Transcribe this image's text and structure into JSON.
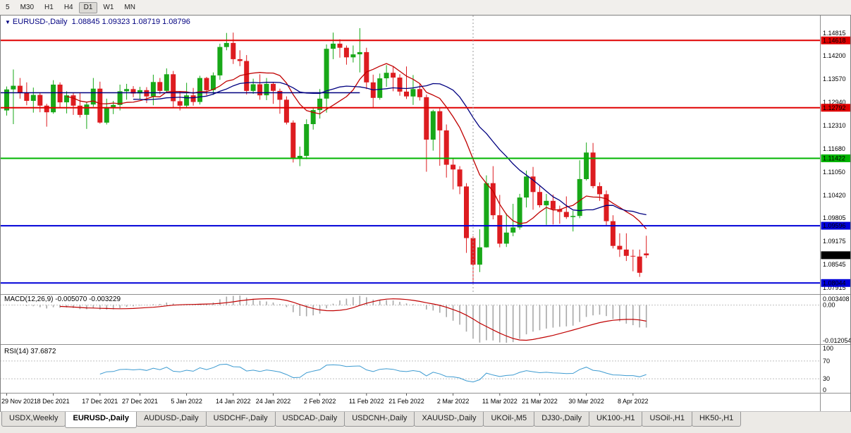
{
  "toolbar": {
    "timeframes": [
      "5",
      "M30",
      "H1",
      "H4",
      "D1",
      "W1",
      "MN"
    ],
    "active_timeframe": "D1"
  },
  "chart": {
    "collapse_icon": "▼",
    "title": "EURUSD-,Daily",
    "ohlc_display": "1.08845 1.09323 1.08719 1.08796"
  },
  "indicators": {
    "macd": {
      "label": "MACD(12,26,9) -0.005070 -0.003229",
      "axis_labels": [
        "0.003408",
        "0.00",
        "-0.012054"
      ],
      "histogram_color": "#a8a8a8",
      "signal_color": "#c00000"
    },
    "rsi": {
      "label": "RSI(14) 37.6872",
      "axis_labels": [
        "100",
        "70",
        "30",
        "0"
      ],
      "levels": [
        70,
        30
      ],
      "line_color": "#3d9bd1"
    }
  },
  "price_axis": {
    "regular": [
      1.14815,
      1.142,
      1.1357,
      1.1294,
      1.1231,
      1.1168,
      1.1105,
      1.1042,
      1.09805,
      1.09175,
      1.08545,
      1.07915
    ],
    "highlighted": [
      {
        "value": 1.14618,
        "color": "#e00000"
      },
      {
        "value": 1.12792,
        "color": "#e00000"
      },
      {
        "value": 1.11422,
        "color": "#00b400"
      },
      {
        "value": 1.09596,
        "color": "#0000d8"
      },
      {
        "value": 1.08044,
        "color": "#0000d8"
      }
    ],
    "current": {
      "value": 1.08796,
      "bg": "#000000"
    }
  },
  "chart_data": {
    "type": "candlestick",
    "symbol": "EURUSD-",
    "period": "Daily",
    "candle_colors": {
      "up": "#18a818",
      "down": "#dd1c20"
    },
    "y_axis_range": [
      1.0778,
      1.1514
    ],
    "horizontal_lines": [
      {
        "value": 1.14618,
        "color": "#e00000"
      },
      {
        "value": 1.12792,
        "color": "#e00000"
      },
      {
        "value": 1.11422,
        "color": "#00b400"
      },
      {
        "value": 1.09596,
        "color": "#0000d8"
      },
      {
        "value": 1.08044,
        "color": "#0000d8"
      }
    ],
    "trendline": {
      "value": 1.132,
      "from_index": 0,
      "to_index": 53,
      "color": "#000080"
    },
    "vertical_line": {
      "index": 70,
      "color": "#999999"
    },
    "overlays": [
      {
        "name": "ma-fast",
        "method": "sma",
        "period": 10,
        "color": "#c00000"
      },
      {
        "name": "ma-slow",
        "method": "sma",
        "period": 20,
        "color": "#000080"
      }
    ],
    "macd_params": [
      12,
      26,
      9
    ],
    "rsi_params": [
      14
    ],
    "x_labels": [
      "29 Nov 2021",
      "8 Dec 2021",
      "17 Dec 2021",
      "27 Dec 2021",
      "5 Jan 2022",
      "14 Jan 2022",
      "24 Jan 2022",
      "2 Feb 2022",
      "11 Feb 2022",
      "21 Feb 2022",
      "2 Mar 2022",
      "11 Mar 2022",
      "21 Mar 2022",
      "30 Mar 2022",
      "8 Apr 2022"
    ],
    "x_label_indices": [
      0,
      7,
      14,
      20,
      27,
      34,
      40,
      47,
      54,
      60,
      67,
      74,
      80,
      87,
      94
    ],
    "ohlc": [
      [
        1.1272,
        1.1337,
        1.1258,
        1.1329
      ],
      [
        1.1329,
        1.1383,
        1.1235,
        1.1339
      ],
      [
        1.1339,
        1.136,
        1.1304,
        1.1319
      ],
      [
        1.1319,
        1.1348,
        1.1286,
        1.1298
      ],
      [
        1.1298,
        1.1334,
        1.1266,
        1.1314
      ],
      [
        1.1314,
        1.132,
        1.1267,
        1.1285
      ],
      [
        1.1285,
        1.129,
        1.1228,
        1.1267
      ],
      [
        1.1267,
        1.1354,
        1.1263,
        1.1342
      ],
      [
        1.1342,
        1.1348,
        1.1279,
        1.1294
      ],
      [
        1.1294,
        1.1324,
        1.1264,
        1.1313
      ],
      [
        1.1313,
        1.1319,
        1.126,
        1.1285
      ],
      [
        1.1285,
        1.132,
        1.1253,
        1.126
      ],
      [
        1.126,
        1.1296,
        1.1222,
        1.1288
      ],
      [
        1.1288,
        1.136,
        1.1282,
        1.1331
      ],
      [
        1.1331,
        1.135,
        1.1236,
        1.1239
      ],
      [
        1.1239,
        1.1304,
        1.1234,
        1.1281
      ],
      [
        1.1281,
        1.1298,
        1.1262,
        1.1287
      ],
      [
        1.1287,
        1.1342,
        1.1272,
        1.1324
      ],
      [
        1.1324,
        1.1344,
        1.1301,
        1.133
      ],
      [
        1.133,
        1.1338,
        1.1308,
        1.1318
      ],
      [
        1.1318,
        1.1336,
        1.1302,
        1.1327
      ],
      [
        1.1327,
        1.1335,
        1.1292,
        1.131
      ],
      [
        1.131,
        1.1369,
        1.1286,
        1.1349
      ],
      [
        1.1349,
        1.136,
        1.1316,
        1.1325
      ],
      [
        1.1325,
        1.1386,
        1.132,
        1.137
      ],
      [
        1.137,
        1.1379,
        1.1279,
        1.1297
      ],
      [
        1.1297,
        1.1323,
        1.1272,
        1.1285
      ],
      [
        1.1285,
        1.1347,
        1.1278,
        1.1313
      ],
      [
        1.1313,
        1.1333,
        1.1285,
        1.1295
      ],
      [
        1.1295,
        1.1366,
        1.1288,
        1.136
      ],
      [
        1.136,
        1.1363,
        1.1313,
        1.1327
      ],
      [
        1.1327,
        1.1375,
        1.1314,
        1.1367
      ],
      [
        1.1367,
        1.1453,
        1.1355,
        1.1444
      ],
      [
        1.1444,
        1.1482,
        1.1435,
        1.1455
      ],
      [
        1.1455,
        1.1483,
        1.1398,
        1.1411
      ],
      [
        1.1411,
        1.1435,
        1.1392,
        1.1406
      ],
      [
        1.1406,
        1.1422,
        1.1315,
        1.1325
      ],
      [
        1.1325,
        1.1358,
        1.1317,
        1.1343
      ],
      [
        1.1343,
        1.137,
        1.1301,
        1.1313
      ],
      [
        1.1313,
        1.136,
        1.13,
        1.1344
      ],
      [
        1.1344,
        1.1349,
        1.129,
        1.1325
      ],
      [
        1.1325,
        1.1331,
        1.1263,
        1.1301
      ],
      [
        1.1301,
        1.131,
        1.1234,
        1.1239
      ],
      [
        1.1239,
        1.1245,
        1.1131,
        1.1144
      ],
      [
        1.1144,
        1.1174,
        1.1121,
        1.1149
      ],
      [
        1.1149,
        1.1248,
        1.114,
        1.1235
      ],
      [
        1.1235,
        1.128,
        1.122,
        1.1273
      ],
      [
        1.1273,
        1.133,
        1.125,
        1.1304
      ],
      [
        1.1304,
        1.1451,
        1.1266,
        1.1439
      ],
      [
        1.1439,
        1.1483,
        1.1411,
        1.1453
      ],
      [
        1.1453,
        1.1465,
        1.1415,
        1.1442
      ],
      [
        1.1442,
        1.1448,
        1.1396,
        1.1416
      ],
      [
        1.1416,
        1.1448,
        1.1402,
        1.1424
      ],
      [
        1.1424,
        1.1495,
        1.1375,
        1.143
      ],
      [
        1.143,
        1.1442,
        1.133,
        1.1348
      ],
      [
        1.1348,
        1.1369,
        1.1278,
        1.1306
      ],
      [
        1.1306,
        1.1372,
        1.1301,
        1.1359
      ],
      [
        1.1359,
        1.1395,
        1.1336,
        1.1374
      ],
      [
        1.1374,
        1.1392,
        1.1324,
        1.1361
      ],
      [
        1.1361,
        1.137,
        1.1312,
        1.1323
      ],
      [
        1.1323,
        1.1391,
        1.1303,
        1.131
      ],
      [
        1.131,
        1.1368,
        1.1287,
        1.133
      ],
      [
        1.133,
        1.1343,
        1.1299,
        1.1308
      ],
      [
        1.1308,
        1.1315,
        1.1106,
        1.1193
      ],
      [
        1.1193,
        1.1274,
        1.1163,
        1.127
      ],
      [
        1.127,
        1.1279,
        1.1122,
        1.1218
      ],
      [
        1.1218,
        1.1234,
        1.109,
        1.1125
      ],
      [
        1.1125,
        1.1144,
        1.1058,
        1.1112
      ],
      [
        1.1112,
        1.1121,
        1.1045,
        1.1066
      ],
      [
        1.1066,
        1.1075,
        1.0886,
        1.0926
      ],
      [
        1.0926,
        1.0931,
        1.0804,
        1.0854
      ],
      [
        1.0854,
        1.095,
        1.0834,
        1.0901
      ],
      [
        1.0901,
        1.1096,
        1.09,
        1.1075
      ],
      [
        1.1075,
        1.1121,
        1.0977,
        1.0988
      ],
      [
        1.0988,
        1.1043,
        1.0901,
        1.0911
      ],
      [
        1.0911,
        1.0993,
        1.0902,
        1.0941
      ],
      [
        1.0941,
        1.1019,
        1.0931,
        1.0955
      ],
      [
        1.0955,
        1.1046,
        1.0949,
        1.1036
      ],
      [
        1.1036,
        1.1109,
        1.1009,
        1.1093
      ],
      [
        1.1093,
        1.1119,
        1.1003,
        1.1051
      ],
      [
        1.1051,
        1.1069,
        1.1009,
        1.1015
      ],
      [
        1.1015,
        1.1046,
        1.0962,
        1.1027
      ],
      [
        1.1027,
        1.1044,
        1.0963,
        1.1004
      ],
      [
        1.1004,
        1.1014,
        1.0965,
        1.0997
      ],
      [
        1.0997,
        1.1039,
        1.0978,
        1.0983
      ],
      [
        1.0983,
        1.1,
        1.0944,
        1.0986
      ],
      [
        1.0986,
        1.1137,
        1.098,
        1.1086
      ],
      [
        1.1086,
        1.1185,
        1.1082,
        1.1158
      ],
      [
        1.1158,
        1.1184,
        1.1061,
        1.1067
      ],
      [
        1.1067,
        1.1077,
        1.1027,
        1.1045
      ],
      [
        1.1045,
        1.1055,
        1.0961,
        1.0972
      ],
      [
        1.0972,
        1.0988,
        1.0898,
        1.0905
      ],
      [
        1.0905,
        1.0939,
        1.0875,
        1.0895
      ],
      [
        1.0895,
        1.0939,
        1.0864,
        1.0878
      ],
      [
        1.0878,
        1.0895,
        1.0836,
        1.0876
      ],
      [
        1.0876,
        1.0895,
        1.0821,
        1.0832
      ],
      [
        1.08845,
        1.09323,
        1.08719,
        1.08796
      ]
    ]
  },
  "tabs": {
    "active": "EURUSD-,Daily",
    "items": [
      {
        "label": "USDX,Weekly"
      },
      {
        "label": "EURUSD-,Daily"
      },
      {
        "label": "AUDUSD-,Daily"
      },
      {
        "label": "USDCHF-,Daily"
      },
      {
        "label": "USDCAD-,Daily"
      },
      {
        "label": "USDCNH-,Daily"
      },
      {
        "label": "XAUUSD-,Daily"
      },
      {
        "label": "UKOil-,M5"
      },
      {
        "label": "DJ30-,Daily"
      },
      {
        "label": "UK100-,H1"
      },
      {
        "label": "USOil-,H1"
      },
      {
        "label": "HK50-,H1"
      }
    ]
  }
}
